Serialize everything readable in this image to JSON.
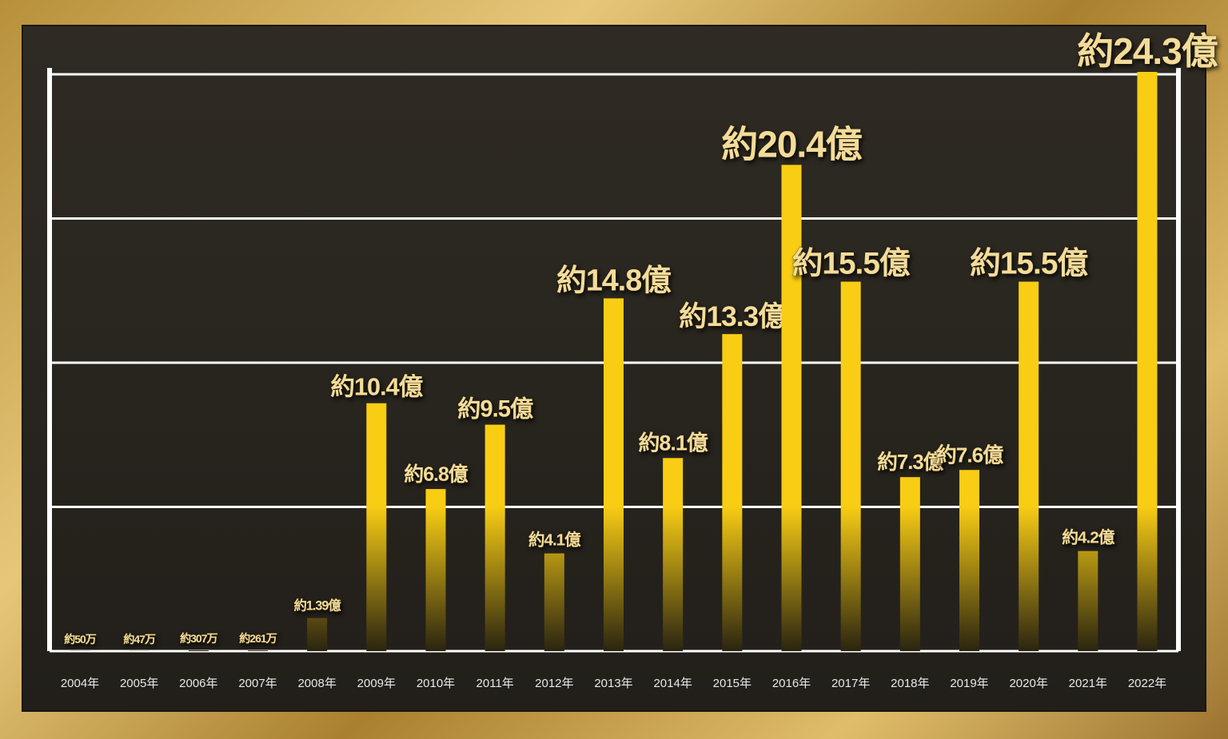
{
  "chart_data": {
    "type": "bar",
    "categories": [
      "2004年",
      "2005年",
      "2006年",
      "2007年",
      "2008年",
      "2009年",
      "2010年",
      "2011年",
      "2012年",
      "2013年",
      "2014年",
      "2015年",
      "2016年",
      "2017年",
      "2018年",
      "2019年",
      "2020年",
      "2021年",
      "2022年"
    ],
    "values": [
      0.005,
      0.0047,
      0.0307,
      0.0261,
      1.39,
      10.4,
      6.8,
      9.5,
      4.1,
      14.8,
      8.1,
      13.3,
      20.4,
      15.5,
      7.3,
      7.6,
      15.5,
      4.2,
      24.3
    ],
    "value_labels": [
      "約50万",
      "約47万",
      "約307万",
      "約261万",
      "約1.39億",
      "約10.4億",
      "約6.8億",
      "約9.5億",
      "約4.1億",
      "約14.8億",
      "約8.1億",
      "約13.3億",
      "約20.4億",
      "約15.5億",
      "約7.3億",
      "約7.6億",
      "約15.5億",
      "約4.2億",
      "約24.3億"
    ],
    "color": "#f8cd14"
  }
}
